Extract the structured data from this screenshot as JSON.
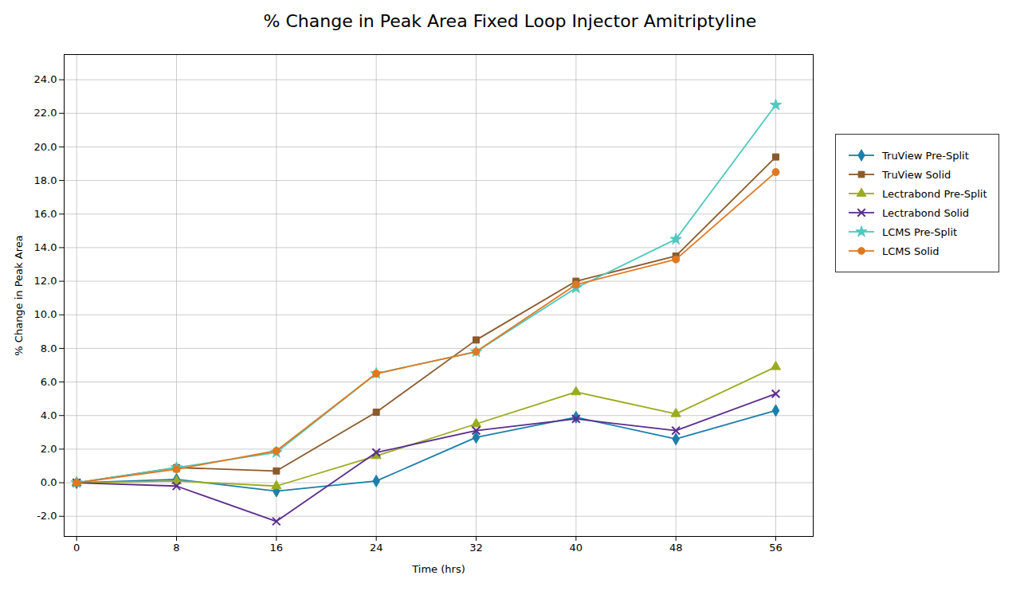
{
  "chart_data": {
    "type": "line",
    "title": "% Change in Peak Area Fixed Loop Injector Amitriptyline",
    "x_label": "Time (hrs)",
    "y_label": "% Change in Peak Area",
    "x": [
      0,
      8,
      16,
      24,
      32,
      40,
      48,
      56
    ],
    "series": [
      {
        "name": "TruView Pre-Split",
        "color": "#1A7FAA",
        "marker": "diamond",
        "values": [
          0.0,
          0.2,
          -0.5,
          0.1,
          2.7,
          3.9,
          2.6,
          4.3
        ]
      },
      {
        "name": "TruView Solid",
        "color": "#8B5A2B",
        "marker": "square",
        "values": [
          0.0,
          0.9,
          0.7,
          4.2,
          8.5,
          12.0,
          13.5,
          19.4
        ]
      },
      {
        "name": "Lectrabond Pre-Split",
        "color": "#9AAB1E",
        "marker": "triangle",
        "values": [
          0.0,
          0.1,
          -0.2,
          1.6,
          3.5,
          5.4,
          4.1,
          6.9
        ]
      },
      {
        "name": "Lectrabond Solid",
        "color": "#5B2D8E",
        "marker": "x",
        "values": [
          0.0,
          -0.2,
          -2.3,
          1.8,
          3.1,
          3.8,
          3.1,
          5.3
        ]
      },
      {
        "name": "LCMS Pre-Split",
        "color": "#4EC8C0",
        "marker": "star",
        "values": [
          0.0,
          0.9,
          1.8,
          6.5,
          7.8,
          11.6,
          14.5,
          22.5
        ]
      },
      {
        "name": "LCMS Solid",
        "color": "#E07820",
        "marker": "circle",
        "values": [
          0.0,
          0.8,
          1.9,
          6.5,
          7.8,
          11.8,
          13.3,
          18.5
        ]
      }
    ],
    "xlim": [
      -1,
      59
    ],
    "ylim": [
      -3.2,
      25.5
    ],
    "xticks": [
      0,
      8,
      16,
      24,
      32,
      40,
      48,
      56
    ],
    "yticks": [
      {
        "value": -2.0,
        "label": "-2.0"
      },
      {
        "value": 0.0,
        "label": "0.0"
      },
      {
        "value": 2.0,
        "label": "2.0"
      },
      {
        "value": 4.0,
        "label": "4.0"
      },
      {
        "value": 6.0,
        "label": "6.0"
      },
      {
        "value": 8.0,
        "label": "8.0"
      },
      {
        "value": 10.0,
        "label": "10.0"
      },
      {
        "value": 12.0,
        "label": "12.0"
      },
      {
        "value": 14.0,
        "label": "14.0"
      },
      {
        "value": 16.0,
        "label": "16.0"
      },
      {
        "value": 18.0,
        "label": "18.0"
      },
      {
        "value": 20.0,
        "label": "20.0"
      },
      {
        "value": 22.0,
        "label": "22.0"
      },
      {
        "value": 24.0,
        "label": "24.0"
      }
    ],
    "grid": true,
    "legend": "right"
  }
}
